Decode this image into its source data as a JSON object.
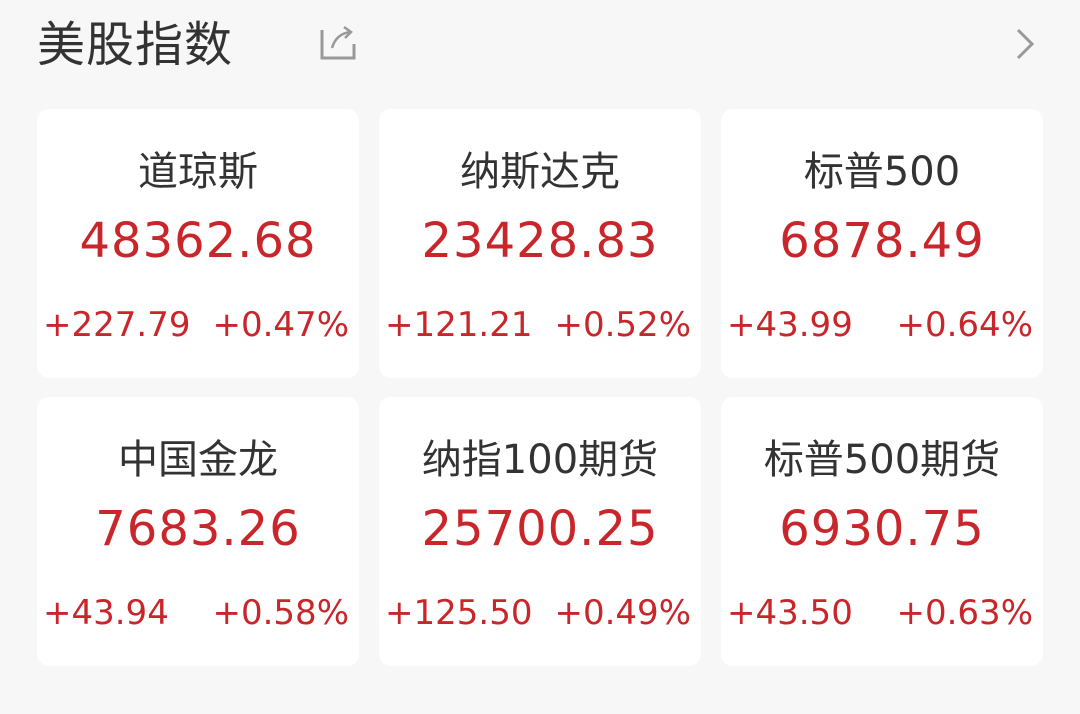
{
  "header": {
    "title": "美股指数",
    "share_icon": "share-icon",
    "more_icon": "chevron-right-icon"
  },
  "colors": {
    "up": "#c8262a",
    "text": "#333333",
    "background": "#f7f7f7"
  },
  "indices": [
    {
      "name": "道琼斯",
      "value": "48362.68",
      "change": "+227.79",
      "percent": "+0.47%"
    },
    {
      "name": "纳斯达克",
      "value": "23428.83",
      "change": "+121.21",
      "percent": "+0.52%"
    },
    {
      "name": "标普500",
      "value": "6878.49",
      "change": "+43.99",
      "percent": "+0.64%"
    },
    {
      "name": "中国金龙",
      "value": "7683.26",
      "change": "+43.94",
      "percent": "+0.58%"
    },
    {
      "name": "纳指100期货",
      "value": "25700.25",
      "change": "+125.50",
      "percent": "+0.49%"
    },
    {
      "name": "标普500期货",
      "value": "6930.75",
      "change": "+43.50",
      "percent": "+0.63%"
    }
  ]
}
